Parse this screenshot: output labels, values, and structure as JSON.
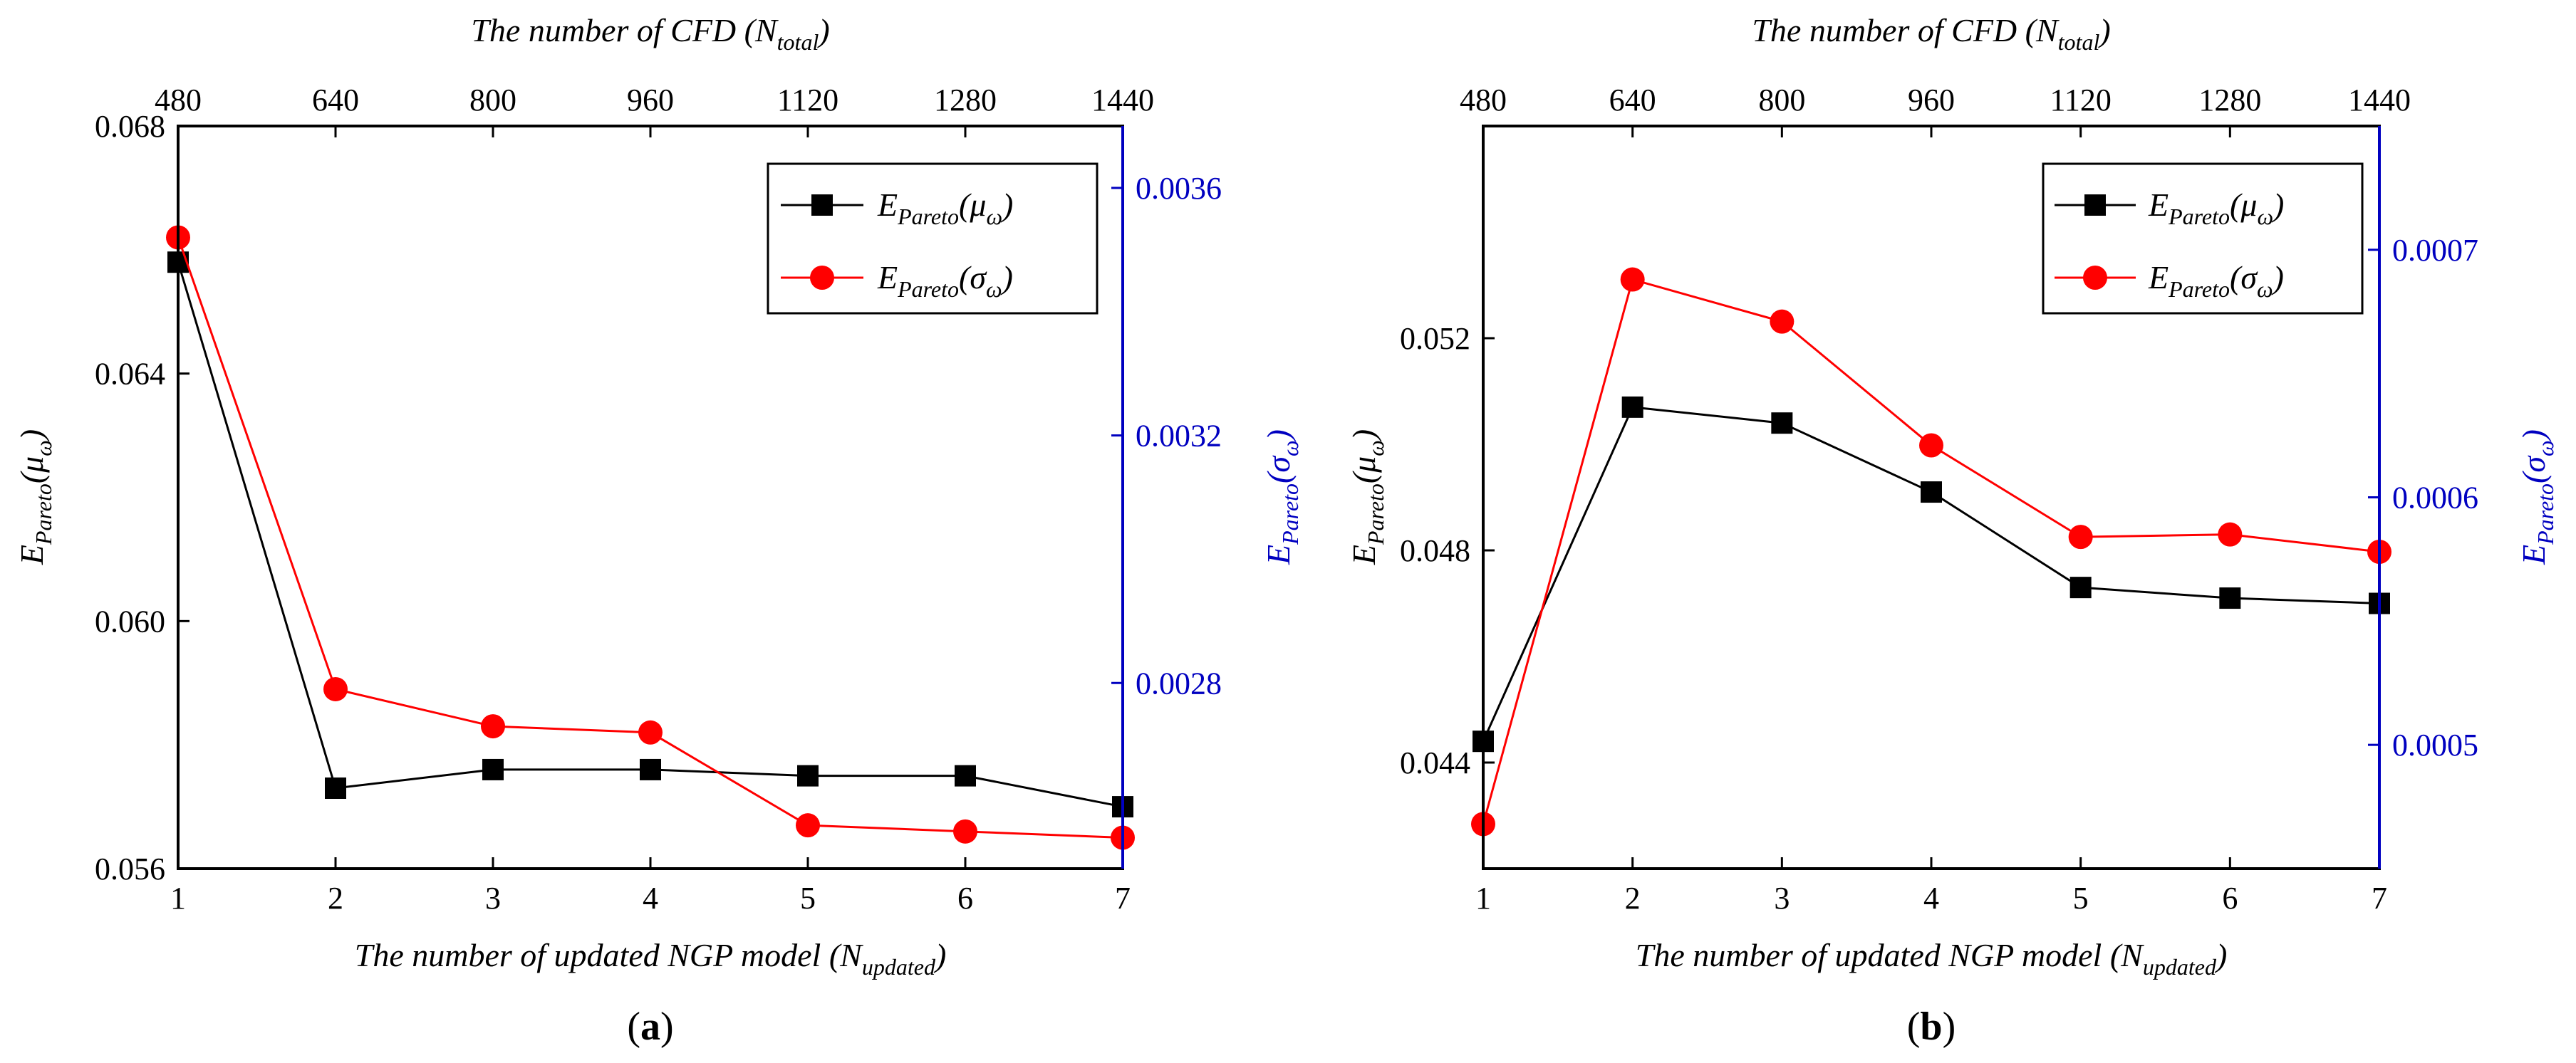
{
  "colors": {
    "series_mu": "#000000",
    "series_sigma": "#ff0000",
    "right_axis": "#0000c0"
  },
  "chart_data": [
    {
      "panel": "a",
      "type": "line",
      "panel_label_open": "(",
      "panel_label_letter": "a",
      "panel_label_close": ")",
      "x": [
        1,
        2,
        3,
        4,
        5,
        6,
        7
      ],
      "xticks": [
        "1",
        "2",
        "3",
        "4",
        "5",
        "6",
        "7"
      ],
      "xlim": [
        1,
        7
      ],
      "top_xticks": [
        "480",
        "640",
        "800",
        "960",
        "1120",
        "1280",
        "1440"
      ],
      "xlabel": {
        "main": "The number of updated NGP model (N",
        "sub": "updated",
        "end": ")"
      },
      "top_xlabel": {
        "main": "The number of CFD (N",
        "sub": "total",
        "end": ")"
      },
      "ylabel_left": {
        "main": "E",
        "sub": "Pareto",
        "end": "(μ",
        "sub2": "ω",
        "end2": ")"
      },
      "ylabel_right": {
        "main": "E",
        "sub": "Pareto",
        "end": "(σ",
        "sub2": "ω",
        "end2": ")"
      },
      "ylim_left": [
        0.056,
        0.068
      ],
      "yticks_left": [
        0.056,
        0.06,
        0.064,
        0.068
      ],
      "yticks_left_labels": [
        "0.056",
        "0.060",
        "0.064",
        "0.068"
      ],
      "ylim_right": [
        0.0025,
        0.0037
      ],
      "yticks_right": [
        0.0028,
        0.0032,
        0.0036
      ],
      "yticks_right_labels": [
        "0.0028",
        "0.0032",
        "0.0036"
      ],
      "series": [
        {
          "name": "E_Pareto(μω)",
          "axis": "left",
          "marker": "square",
          "values": [
            0.0658,
            0.0573,
            0.0576,
            0.0576,
            0.0575,
            0.0575,
            0.057
          ]
        },
        {
          "name": "E_Pareto(σω)",
          "axis": "right",
          "marker": "circle",
          "values": [
            0.00352,
            0.00279,
            0.00273,
            0.00272,
            0.00257,
            0.00256,
            0.00255
          ]
        }
      ],
      "legend": [
        {
          "main": "E",
          "sub": "Pareto",
          "end": "(μ",
          "sub2": "ω",
          "end2": ")"
        },
        {
          "main": "E",
          "sub": "Pareto",
          "end": "(σ",
          "sub2": "ω",
          "end2": ")"
        }
      ],
      "legend_position": "top-right"
    },
    {
      "panel": "b",
      "type": "line",
      "panel_label_open": "(",
      "panel_label_letter": "b",
      "panel_label_close": ")",
      "x": [
        1,
        2,
        3,
        4,
        5,
        6,
        7
      ],
      "xticks": [
        "1",
        "2",
        "3",
        "4",
        "5",
        "6",
        "7"
      ],
      "xlim": [
        1,
        7
      ],
      "top_xticks": [
        "480",
        "640",
        "800",
        "960",
        "1120",
        "1280",
        "1440"
      ],
      "xlabel": {
        "main": "The number of updated NGP model (N",
        "sub": "updated",
        "end": ")"
      },
      "top_xlabel": {
        "main": "The number of CFD (N",
        "sub": "total",
        "end": ")"
      },
      "ylabel_left": {
        "main": "E",
        "sub": "Pareto",
        "end": "(μ",
        "sub2": "ω",
        "end2": ")"
      },
      "ylabel_right": {
        "main": "E",
        "sub": "Pareto",
        "end": "(σ",
        "sub2": "ω",
        "end2": ")"
      },
      "ylim_left": [
        0.042,
        0.056
      ],
      "yticks_left": [
        0.044,
        0.048,
        0.052
      ],
      "yticks_left_labels": [
        "0.044",
        "0.048",
        "0.052"
      ],
      "ylim_right": [
        0.00045,
        0.00075
      ],
      "yticks_right": [
        0.0005,
        0.0006,
        0.0007
      ],
      "yticks_right_labels": [
        "0.0005",
        "0.0006",
        "0.0007"
      ],
      "series": [
        {
          "name": "E_Pareto(μω)",
          "axis": "left",
          "marker": "square",
          "values": [
            0.0444,
            0.0507,
            0.0504,
            0.0491,
            0.0473,
            0.0471,
            0.047
          ]
        },
        {
          "name": "E_Pareto(σω)",
          "axis": "right",
          "marker": "circle",
          "values": [
            0.000468,
            0.000688,
            0.000671,
            0.000621,
            0.000584,
            0.000585,
            0.000578
          ]
        }
      ],
      "legend": [
        {
          "main": "E",
          "sub": "Pareto",
          "end": "(μ",
          "sub2": "ω",
          "end2": ")"
        },
        {
          "main": "E",
          "sub": "Pareto",
          "end": "(σ",
          "sub2": "ω",
          "end2": ")"
        }
      ],
      "legend_position": "top-right"
    }
  ]
}
